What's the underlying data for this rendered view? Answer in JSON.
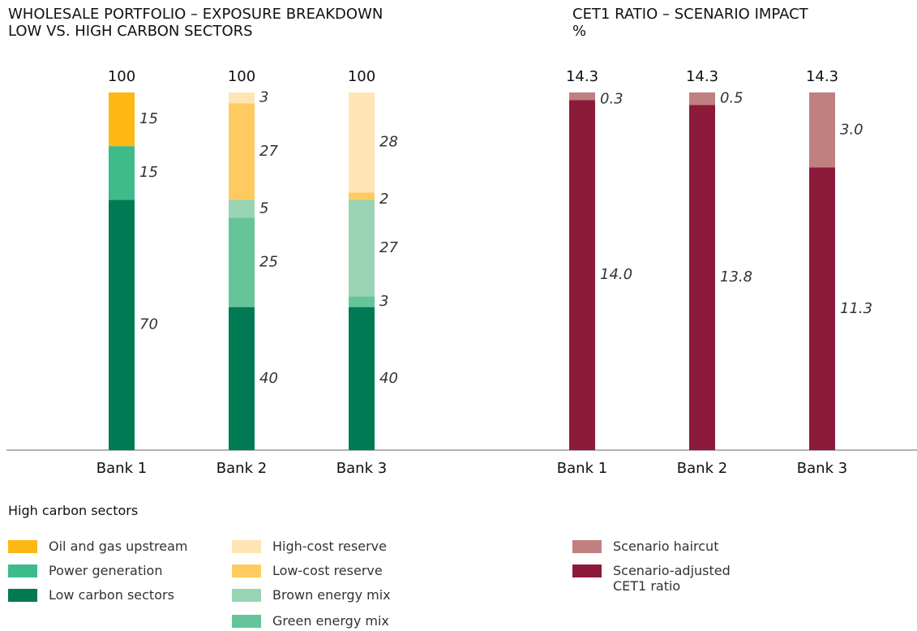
{
  "chart_data": [
    {
      "type": "stacked_bar",
      "title": "WHOLESALE PORTFOLIO – EXPOSURE BREAKDOWN",
      "subtitle": "LOW VS. HIGH CARBON SECTORS",
      "legend_title": "High carbon sectors",
      "categories": [
        "Bank 1",
        "Bank 2",
        "Bank 3"
      ],
      "totals": [
        100,
        100,
        100
      ],
      "ylim": [
        0,
        100
      ],
      "series": [
        {
          "name": "Oil and gas upstream",
          "color": "#fdb813",
          "values": [
            15,
            null,
            null
          ]
        },
        {
          "name": "Power generation",
          "color": "#3dbb8a",
          "values": [
            15,
            null,
            null
          ]
        },
        {
          "name": "Low carbon sectors",
          "color": "#007a53",
          "values": [
            70,
            40,
            40
          ]
        },
        {
          "name": "High-cost reserve",
          "color": "#ffe5b4",
          "values": [
            null,
            3,
            28
          ]
        },
        {
          "name": "Low-cost reserve",
          "color": "#ffcb60",
          "values": [
            null,
            27,
            2
          ]
        },
        {
          "name": "Brown energy mix",
          "color": "#99d4b4",
          "values": [
            null,
            5,
            27
          ]
        },
        {
          "name": "Green energy mix",
          "color": "#66c49a",
          "values": [
            null,
            25,
            3
          ]
        }
      ]
    },
    {
      "type": "stacked_bar",
      "title": "CET1 RATIO – SCENARIO IMPACT",
      "subtitle": "%",
      "categories": [
        "Bank 1",
        "Bank 2",
        "Bank 3"
      ],
      "totals": [
        14.3,
        14.3,
        14.3
      ],
      "ylim": [
        0,
        14.3
      ],
      "series": [
        {
          "name": "Scenario haircut",
          "color": "#c08080",
          "values": [
            0.3,
            0.5,
            3.0
          ],
          "value_labels": [
            "0.3",
            "0.5",
            "3.0"
          ]
        },
        {
          "name": "Scenario-adjusted CET1 ratio",
          "color": "#8c1a3a",
          "values": [
            14.0,
            13.8,
            11.3
          ],
          "value_labels": [
            "14.0",
            "13.8",
            "11.3"
          ]
        }
      ]
    }
  ]
}
